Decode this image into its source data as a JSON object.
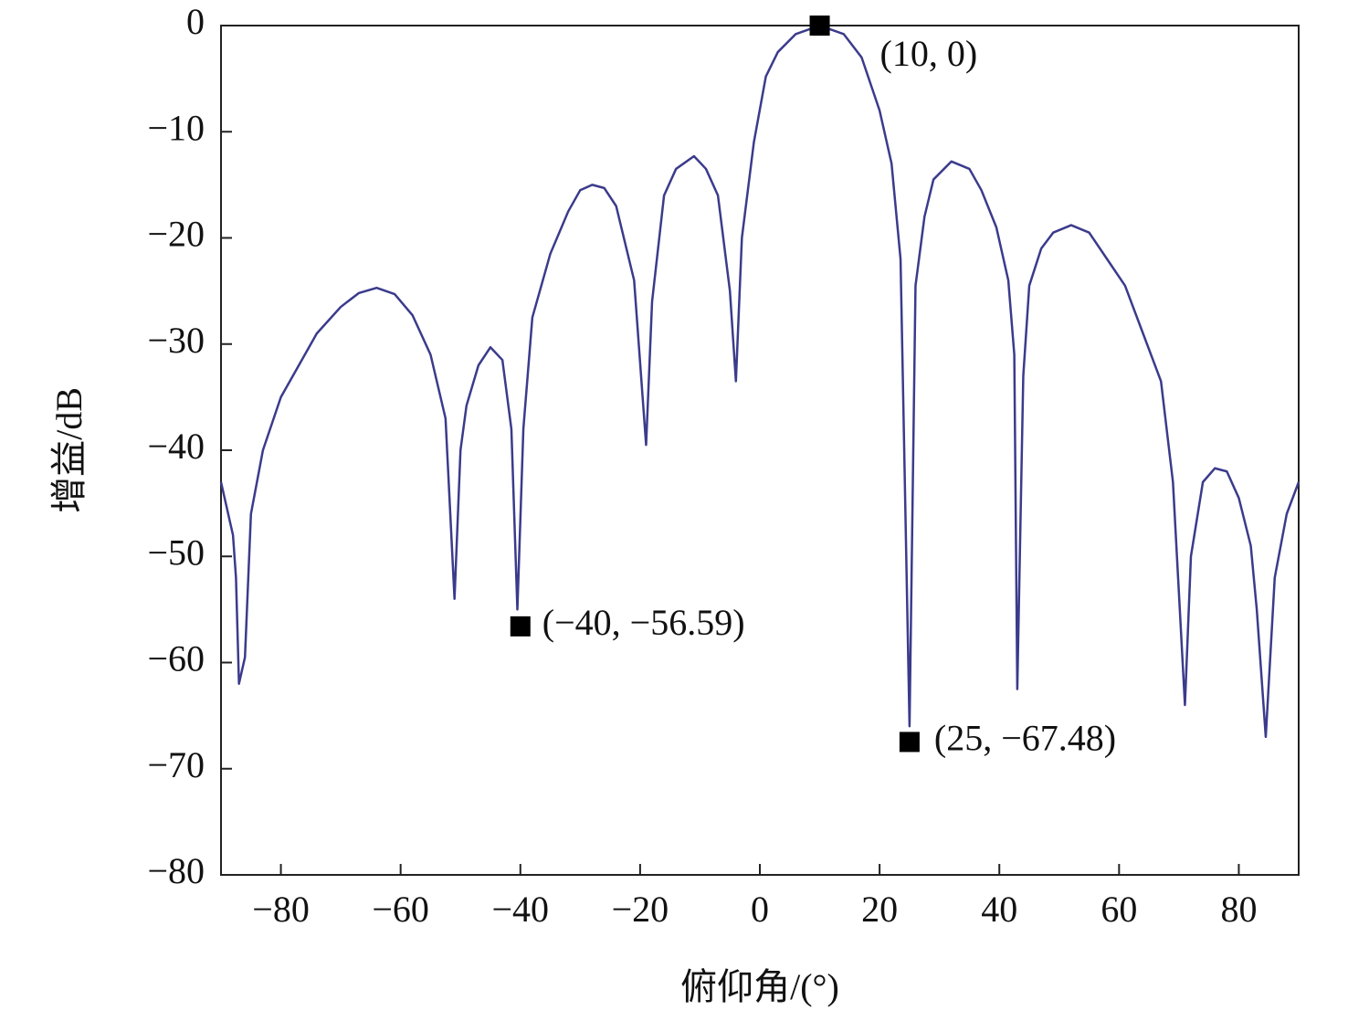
{
  "chart_data": {
    "type": "line",
    "xlabel": "俯仰角/(°)",
    "ylabel": "增益/dB",
    "xlim": [
      -90,
      90
    ],
    "ylim": [
      -80,
      0
    ],
    "xticks": [
      {
        "value": -80,
        "label": "−80"
      },
      {
        "value": -60,
        "label": "−60"
      },
      {
        "value": -40,
        "label": "−40"
      },
      {
        "value": -20,
        "label": "−20"
      },
      0,
      20,
      40,
      60,
      80
    ],
    "yticks": [
      0,
      {
        "value": -10,
        "label": "−10"
      },
      {
        "value": -20,
        "label": "−20"
      },
      {
        "value": -30,
        "label": "−30"
      },
      {
        "value": -40,
        "label": "−40"
      },
      {
        "value": -50,
        "label": "−50"
      },
      {
        "value": -60,
        "label": "−60"
      },
      {
        "value": -70,
        "label": "−70"
      },
      {
        "value": -80,
        "label": "−80"
      }
    ],
    "x": [
      -90,
      -88,
      -87.5,
      -87,
      -86,
      -85,
      -83,
      -80,
      -77,
      -74,
      -70,
      -67,
      -64,
      -61,
      -58,
      -55,
      -52.5,
      -51,
      -50,
      -49,
      -47,
      -45,
      -43,
      -41.5,
      -40.5,
      -39.5,
      -38,
      -35,
      -32,
      -30,
      -28,
      -26,
      -24,
      -21,
      -19,
      -18,
      -16,
      -14,
      -11,
      -9,
      -7,
      -5,
      -4,
      -3,
      -1,
      1,
      3,
      6,
      10,
      14,
      17,
      20,
      22,
      23.5,
      25,
      26,
      27.5,
      29,
      32,
      35,
      37,
      39.5,
      41.5,
      42.5,
      43,
      44,
      45,
      47,
      49,
      52,
      55,
      58,
      61,
      64,
      67,
      69,
      71,
      72,
      74,
      76,
      78,
      80,
      82,
      83,
      84.5,
      86,
      88,
      90
    ],
    "series": [
      {
        "color": "#3b3b8c",
        "values": [
          -43,
          -48,
          -52,
          -62,
          -59.5,
          -46,
          -40,
          -35,
          -32,
          -29,
          -26.5,
          -25.2,
          -24.7,
          -25.3,
          -27.3,
          -31,
          -37,
          -54,
          -40,
          -35.8,
          -32,
          -30.3,
          -31.5,
          -38,
          -55,
          -38,
          -27.5,
          -21.5,
          -17.5,
          -15.5,
          -15,
          -15.3,
          -17,
          -24,
          -39.5,
          -26,
          -16,
          -13.5,
          -12.3,
          -13.5,
          -16,
          -25,
          -33.5,
          -20,
          -11,
          -4.8,
          -2.5,
          -0.8,
          0,
          -0.8,
          -3,
          -8,
          -13,
          -22,
          -66,
          -24.5,
          -18,
          -14.5,
          -12.8,
          -13.5,
          -15.5,
          -19,
          -24,
          -31,
          -62.5,
          -33,
          -24.5,
          -21,
          -19.5,
          -18.8,
          -19.5,
          -22,
          -24.5,
          -29,
          -33.5,
          -43,
          -64,
          -50,
          -43,
          -41.7,
          -42,
          -44.5,
          -49,
          -55,
          -67,
          -52,
          -46,
          -43
        ]
      }
    ],
    "annotations": [
      {
        "x": 10,
        "y": 0,
        "label": "(10, 0)"
      },
      {
        "x": -40,
        "y": -56.59,
        "label": "(−40, −56.59)"
      },
      {
        "x": 25,
        "y": -67.48,
        "label": "(25, −67.48)"
      }
    ]
  }
}
